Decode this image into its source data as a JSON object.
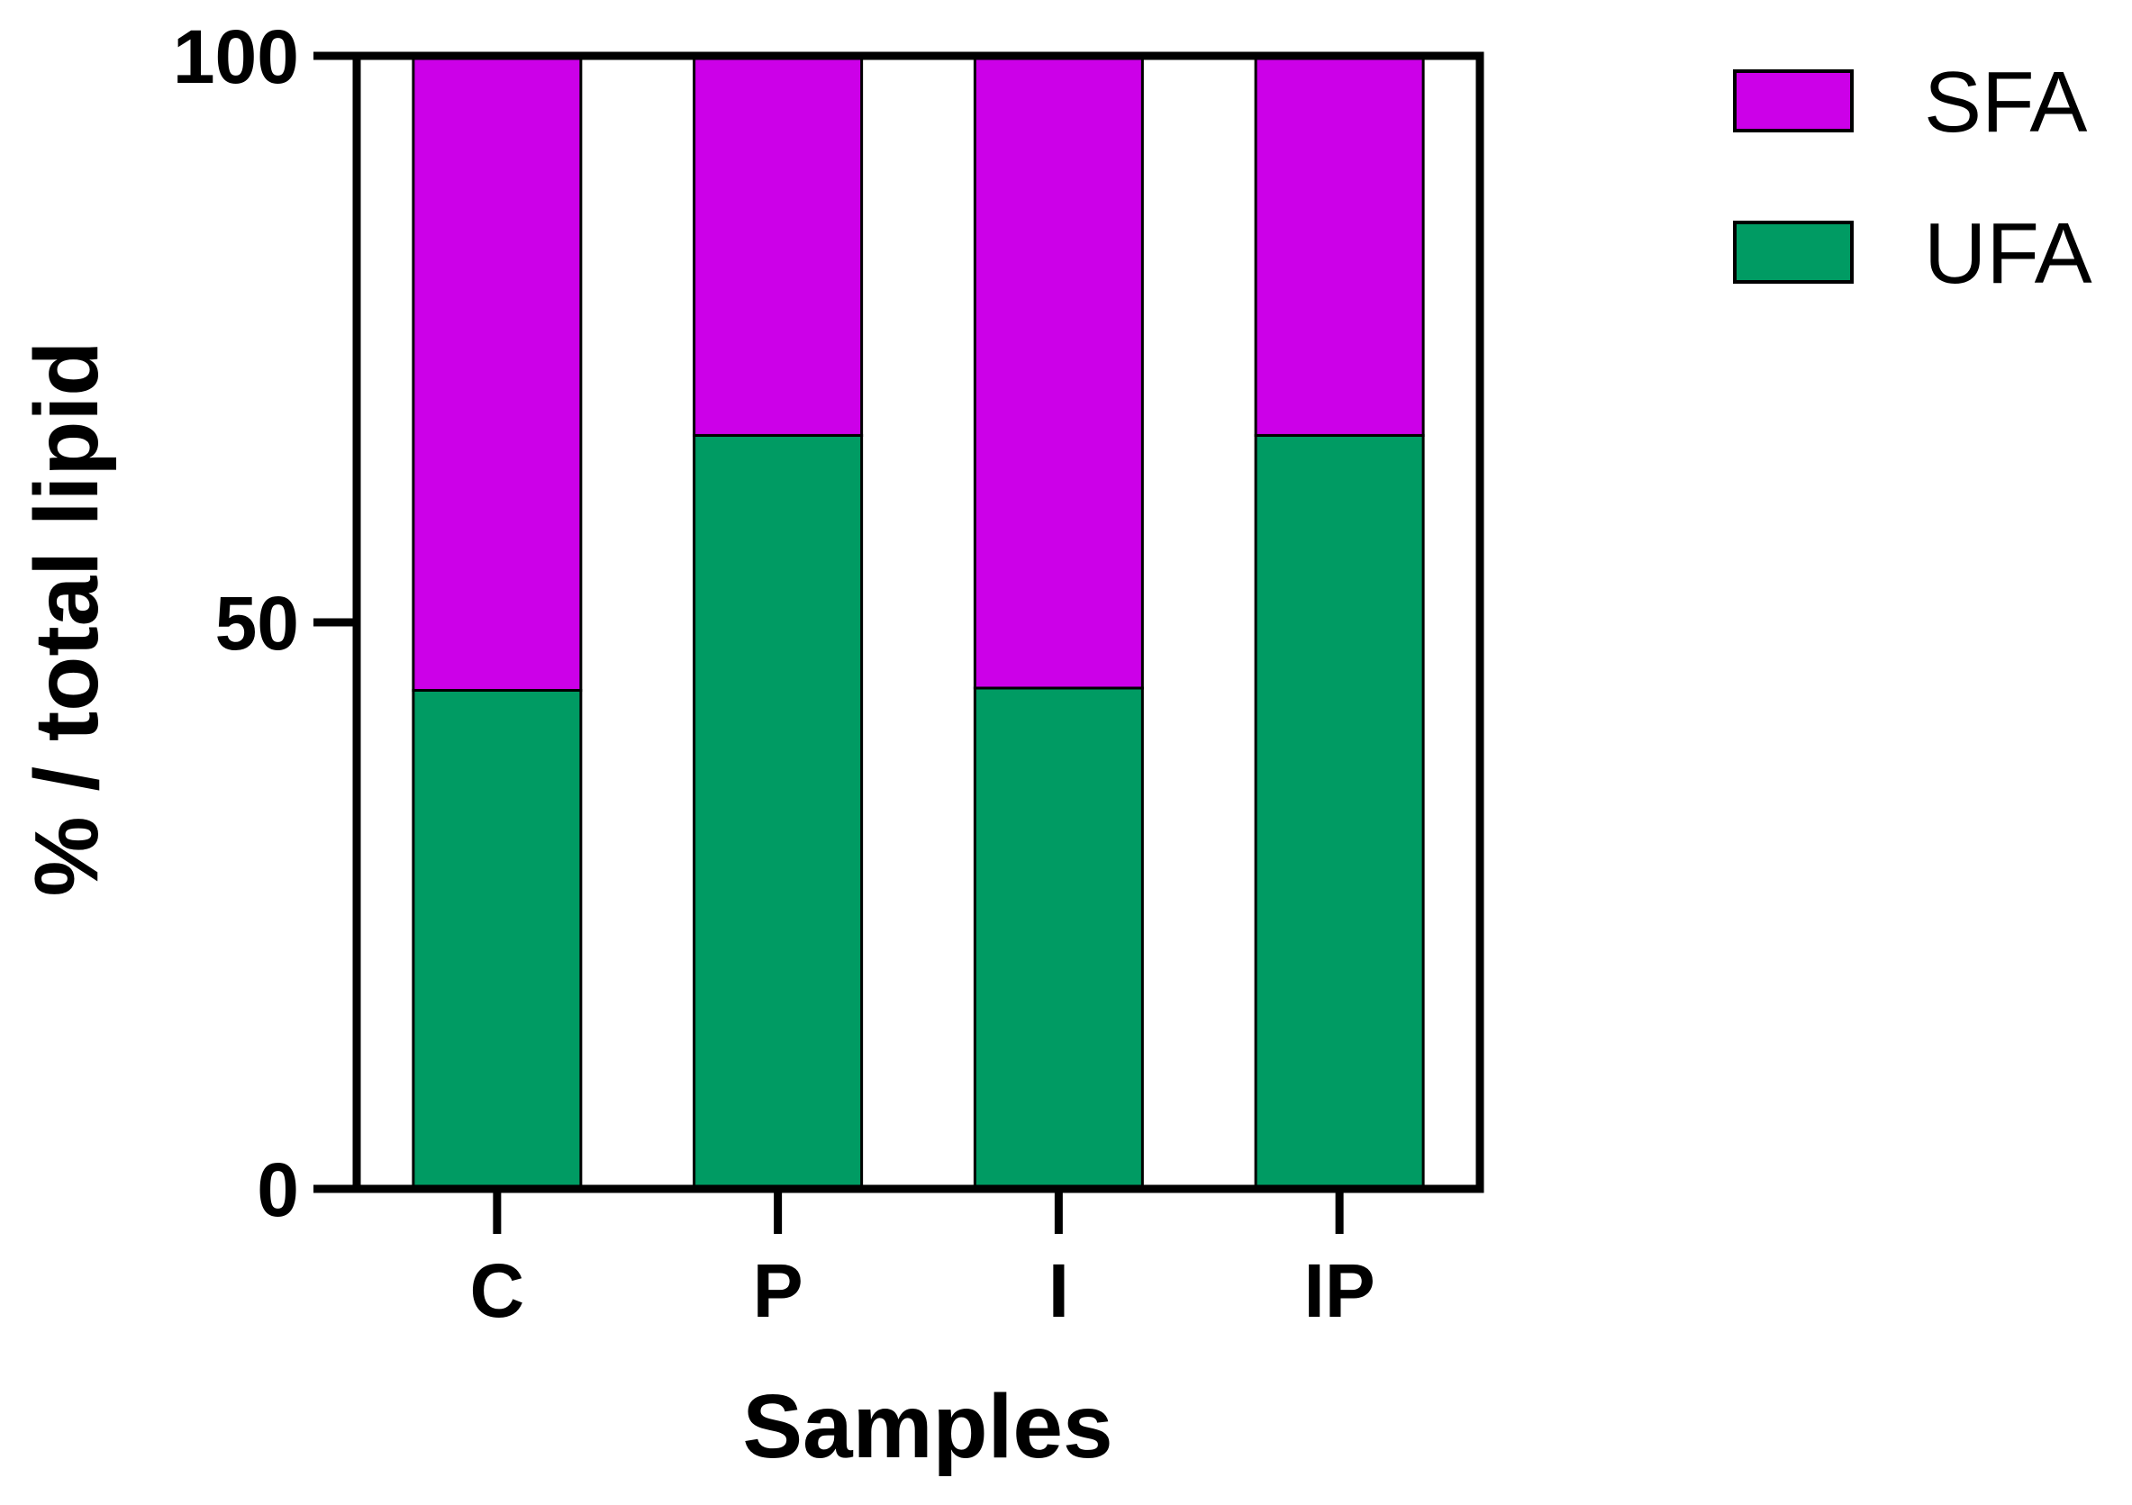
{
  "chart_data": {
    "type": "bar",
    "stacked": true,
    "categories": [
      "C",
      "P",
      "I",
      "IP"
    ],
    "series": [
      {
        "name": "UFA",
        "color": "#009b63",
        "values": [
          44,
          66.5,
          44.2,
          66.5
        ]
      },
      {
        "name": "SFA",
        "color": "#cc00e8",
        "values": [
          56,
          33.5,
          55.8,
          33.5
        ]
      }
    ],
    "xlabel": "Samples",
    "ylabel": "% / total lipid",
    "ylim": [
      0,
      100
    ],
    "yticks": [
      "0",
      "50",
      "100"
    ],
    "legend": {
      "position": "top-right",
      "order": [
        "SFA",
        "UFA"
      ]
    },
    "grid": false
  }
}
